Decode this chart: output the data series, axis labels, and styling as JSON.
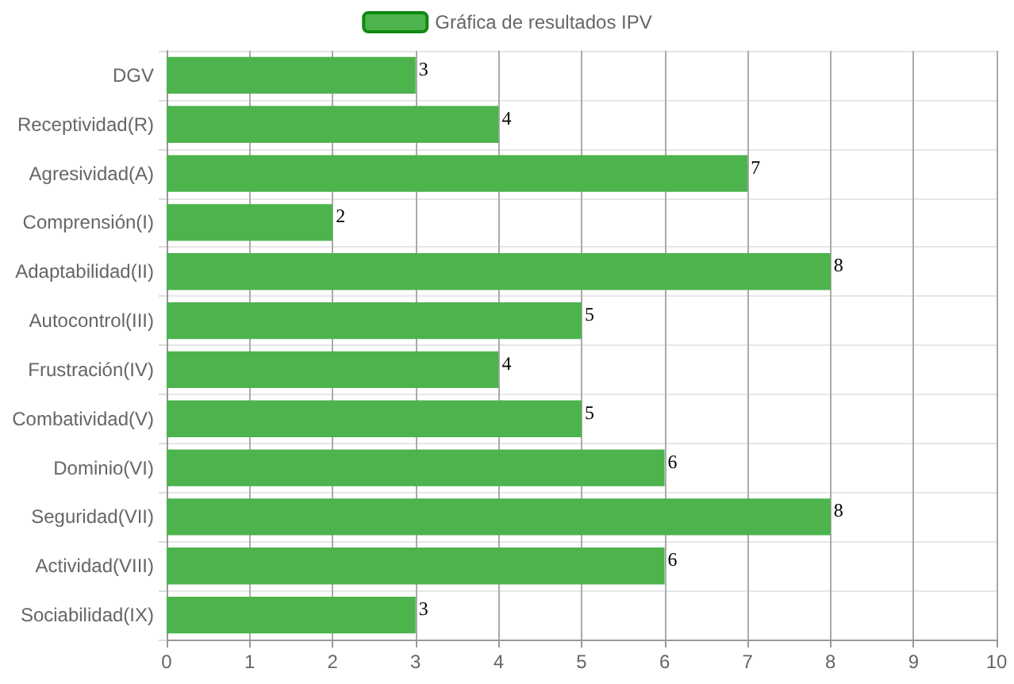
{
  "chart_data": {
    "type": "bar",
    "orientation": "horizontal",
    "categories": [
      "DGV",
      "Receptividad(R)",
      "Agresividad(A)",
      "Comprensión(I)",
      "Adaptabilidad(II)",
      "Autocontrol(III)",
      "Frustración(IV)",
      "Combatividad(V)",
      "Dominio(VI)",
      "Seguridad(VII)",
      "Actividad(VIII)",
      "Sociabilidad(IX)"
    ],
    "series": [
      {
        "name": "Gráfica de resultados IPV",
        "color": "#4db34d",
        "values": [
          3,
          4,
          7,
          2,
          8,
          5,
          4,
          5,
          6,
          8,
          6,
          3
        ]
      }
    ],
    "xlim": [
      0,
      10
    ],
    "xticks": [
      0,
      1,
      2,
      3,
      4,
      5,
      6,
      7,
      8,
      9,
      10
    ],
    "grid": true,
    "legend": "top",
    "data_labels": true
  }
}
